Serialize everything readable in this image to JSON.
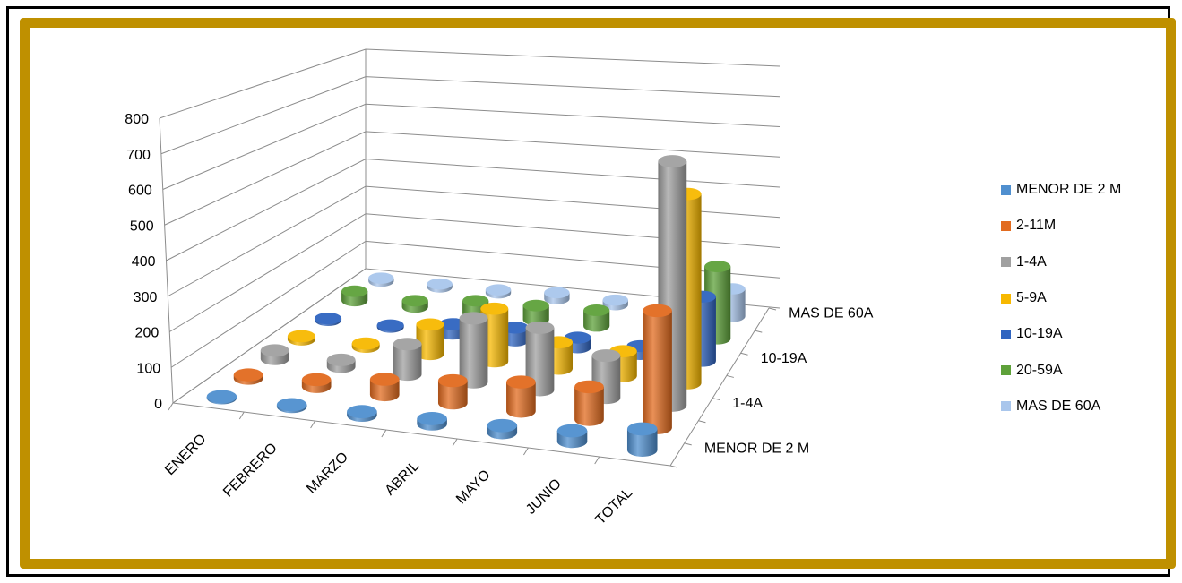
{
  "chart_data": {
    "type": "bar",
    "subtype": "3d-cylinder",
    "title": "",
    "xlabel": "",
    "ylabel": "",
    "categories": [
      "ENERO",
      "FEBRERO",
      "MARZO",
      "ABRIL",
      "MAYO",
      "JUNIO",
      "TOTAL"
    ],
    "depth_tick_labels": [
      "MENOR DE 2 M",
      "1-4A",
      "10-19A",
      "MAS DE 60A"
    ],
    "y_ticks": [
      "0",
      "100",
      "200",
      "300",
      "400",
      "500",
      "600",
      "700",
      "800"
    ],
    "ylim": [
      0,
      800
    ],
    "grid": true,
    "legend_position": "right",
    "series": [
      {
        "name": "MENOR DE 2 M",
        "color": "#4f8fcf",
        "values": [
          3,
          5,
          10,
          15,
          20,
          30,
          60
        ]
      },
      {
        "name": "2-11M",
        "color": "#e26b1f",
        "values": [
          10,
          20,
          45,
          65,
          85,
          95,
          340
        ]
      },
      {
        "name": "1-4A",
        "color": "#a0a0a0",
        "values": [
          25,
          20,
          90,
          190,
          185,
          125,
          725
        ]
      },
      {
        "name": "5-9A",
        "color": "#f7b800",
        "values": [
          10,
          10,
          90,
          160,
          80,
          75,
          575
        ]
      },
      {
        "name": "10-19A",
        "color": "#2f64c0",
        "values": [
          5,
          5,
          30,
          40,
          30,
          25,
          200
        ]
      },
      {
        "name": "20-59A",
        "color": "#5ea13a",
        "values": [
          30,
          20,
          40,
          45,
          50,
          30,
          230
        ]
      },
      {
        "name": "MAS DE 60A",
        "color": "#a9c6ec",
        "values": [
          10,
          10,
          10,
          20,
          15,
          10,
          90
        ]
      }
    ]
  }
}
